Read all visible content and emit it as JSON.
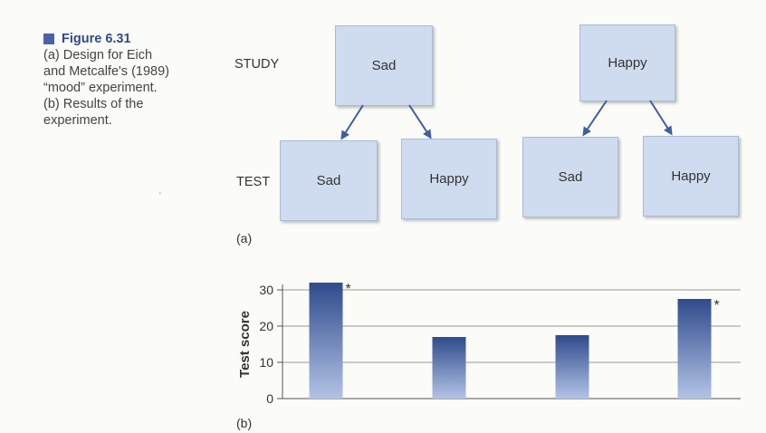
{
  "figure": {
    "title": "Figure 6.31",
    "caption_lines": [
      "(a) Design for Eich",
      "and Metcalfe's (1989)",
      "“mood” experiment.",
      "(b) Results of the",
      "experiment."
    ]
  },
  "design": {
    "study_label": "STUDY",
    "test_label": "TEST",
    "study_boxes": [
      "Sad",
      "Happy"
    ],
    "test_boxes": [
      "Sad",
      "Happy",
      "Sad",
      "Happy"
    ],
    "panel_label": "(a)"
  },
  "results": {
    "panel_label": "(b)"
  },
  "chart_data": {
    "type": "bar",
    "categories": [
      "",
      "",
      "",
      ""
    ],
    "values": [
      32,
      17,
      17.5,
      27.5
    ],
    "annotations": [
      "*",
      "",
      "",
      "*"
    ],
    "title": "",
    "xlabel": "",
    "ylabel": "Test score",
    "ylim": [
      0,
      30
    ],
    "yticks": [
      "0",
      "10",
      "20",
      "30"
    ],
    "grid": true,
    "colors": {
      "bar_top": "#2f4b8c",
      "bar_bottom": "#b3c3e6",
      "grid": "#999999"
    }
  }
}
